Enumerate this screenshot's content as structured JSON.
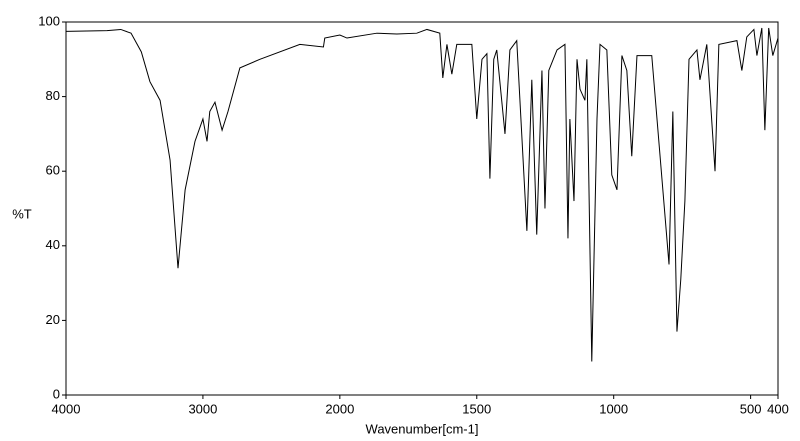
{
  "chart_data": {
    "type": "line",
    "x_label": "Wavenumber[cm-1]",
    "y_label": "%T",
    "xlim": [
      4000,
      400
    ],
    "x_scale_break": 2000,
    "xticks": [
      4000,
      3000,
      2000,
      1500,
      1000,
      500,
      400
    ],
    "ylim": [
      0,
      100
    ],
    "yticks": [
      0,
      20,
      40,
      60,
      80,
      100
    ],
    "color": "#000000",
    "x": [
      4000,
      3850,
      3700,
      3600,
      3525,
      3450,
      3387,
      3313,
      3240,
      3182,
      3130,
      3058,
      3000,
      2970,
      2950,
      2912,
      2860,
      2817,
      2730,
      2584,
      2292,
      2120,
      2110,
      2000,
      1974,
      1865,
      1792,
      1719,
      1682,
      1635,
      1624,
      1609,
      1591,
      1573,
      1518,
      1500,
      1481,
      1463,
      1452,
      1438,
      1427,
      1397,
      1379,
      1354,
      1317,
      1299,
      1281,
      1262,
      1251,
      1237,
      1207,
      1178,
      1167,
      1160,
      1145,
      1134,
      1123,
      1105,
      1098,
      1080,
      1061,
      1050,
      1025,
      1007,
      988,
      970,
      952,
      934,
      915,
      861,
      798,
      784,
      769,
      755,
      740,
      725,
      696,
      685,
      660,
      630,
      616,
      550,
      532,
      514,
      488,
      477,
      459,
      448,
      434,
      419,
      400
    ],
    "y": [
      97.5,
      97.6,
      97.7,
      98,
      97,
      92,
      84,
      79,
      63,
      34,
      55,
      68,
      74,
      68,
      76,
      78.5,
      71,
      76,
      87.7,
      90,
      94,
      93.3,
      95.7,
      96.5,
      95.7,
      97,
      96.8,
      97,
      98,
      97,
      85,
      94,
      86,
      94,
      94,
      74,
      90,
      91.5,
      58,
      90,
      92.5,
      70,
      92.5,
      95,
      44,
      84.5,
      43,
      87,
      50,
      87,
      92.5,
      94,
      42,
      74,
      52,
      90,
      82,
      79,
      90,
      9,
      74,
      94,
      92.5,
      59,
      55,
      91,
      87,
      64,
      91,
      91,
      35,
      76,
      17,
      31,
      52,
      90,
      92.5,
      84.5,
      94,
      60,
      94,
      95,
      87,
      96,
      98,
      91,
      98.4,
      71,
      98.4,
      91,
      95.7
    ]
  }
}
